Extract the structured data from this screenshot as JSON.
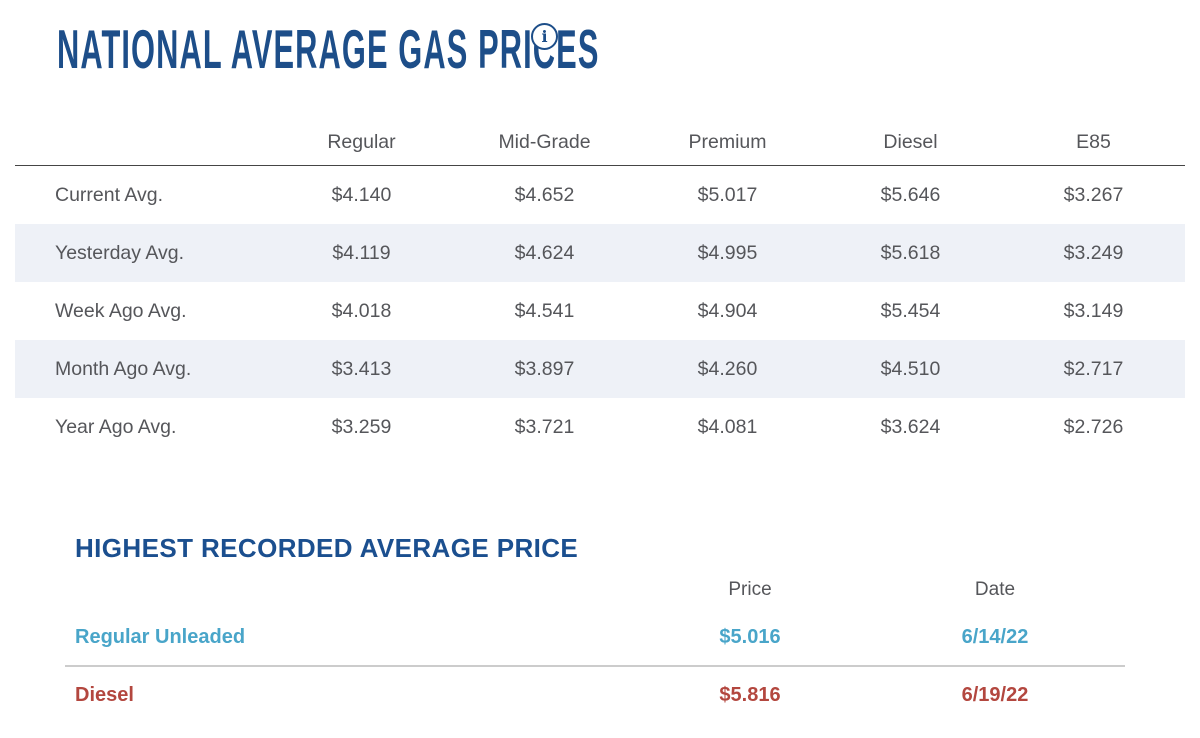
{
  "page": {
    "title": "NATIONAL AVERAGE GAS PRICES",
    "info_icon_glyph": "i"
  },
  "colors": {
    "navy_title": "#1D4E89",
    "table_text_gray": "#55565A",
    "stripe_background": "#EEF1F7",
    "header_rule": "#454545",
    "light_divider": "#CCCCCC",
    "regular_unleaded_teal": "#49A5C9",
    "diesel_red": "#B3473F"
  },
  "gas_table": {
    "columns": [
      "Regular",
      "Mid-Grade",
      "Premium",
      "Diesel",
      "E85"
    ],
    "rows": [
      {
        "label": "Current Avg.",
        "values": [
          "$4.140",
          "$4.652",
          "$5.017",
          "$5.646",
          "$3.267"
        ]
      },
      {
        "label": "Yesterday Avg.",
        "values": [
          "$4.119",
          "$4.624",
          "$4.995",
          "$5.618",
          "$3.249"
        ]
      },
      {
        "label": "Week Ago Avg.",
        "values": [
          "$4.018",
          "$4.541",
          "$4.904",
          "$5.454",
          "$3.149"
        ]
      },
      {
        "label": "Month Ago Avg.",
        "values": [
          "$3.413",
          "$3.897",
          "$4.260",
          "$4.510",
          "$2.717"
        ]
      },
      {
        "label": "Year Ago Avg.",
        "values": [
          "$3.259",
          "$3.721",
          "$4.081",
          "$3.624",
          "$2.726"
        ]
      }
    ]
  },
  "highest_recorded": {
    "title": "HIGHEST RECORDED AVERAGE PRICE",
    "columns": {
      "price": "Price",
      "date": "Date"
    },
    "rows": [
      {
        "label": "Regular Unleaded",
        "price": "$5.016",
        "date": "6/14/22"
      },
      {
        "label": "Diesel",
        "price": "$5.816",
        "date": "6/19/22"
      }
    ]
  }
}
